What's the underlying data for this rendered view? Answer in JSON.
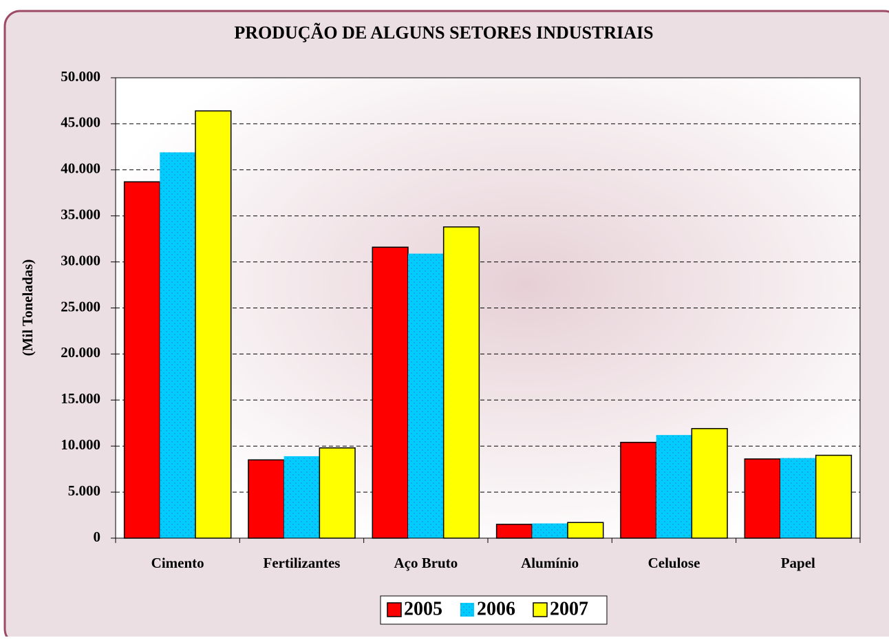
{
  "chart_data": {
    "type": "bar",
    "title": "PRODUÇÃO DE ALGUNS SETORES INDUSTRIAIS",
    "y_label": "(Mil Toneladas)",
    "categories": [
      "Cimento",
      "Fertilizantes",
      "Aço Bruto",
      "Alumínio",
      "Celulose",
      "Papel"
    ],
    "series": [
      {
        "name": "2005",
        "color": "#ff0000",
        "values": [
          38700,
          8500,
          31600,
          1500,
          10400,
          8600
        ]
      },
      {
        "name": "2006",
        "color": "#00ccff",
        "values": [
          41900,
          8900,
          30900,
          1600,
          11200,
          8700
        ]
      },
      {
        "name": "2007",
        "color": "#ffff00",
        "values": [
          46400,
          9800,
          33800,
          1700,
          11900,
          9000
        ]
      }
    ],
    "ylim": [
      0,
      50000
    ],
    "yticks": [
      0,
      {
        "value": 5000,
        "label": "5.000"
      },
      {
        "value": 10000,
        "label": "10.000"
      },
      {
        "value": 15000,
        "label": "15.000"
      },
      {
        "value": 20000,
        "label": "20.000"
      },
      {
        "value": 25000,
        "label": "25.000"
      },
      {
        "value": 30000,
        "label": "30.000"
      },
      {
        "value": 35000,
        "label": "35.000"
      },
      {
        "value": 40000,
        "label": "40.000"
      },
      {
        "value": 45000,
        "label": "45.000"
      },
      {
        "value": 50000,
        "label": "50.000"
      }
    ],
    "grid": true,
    "legend": "bottom"
  }
}
